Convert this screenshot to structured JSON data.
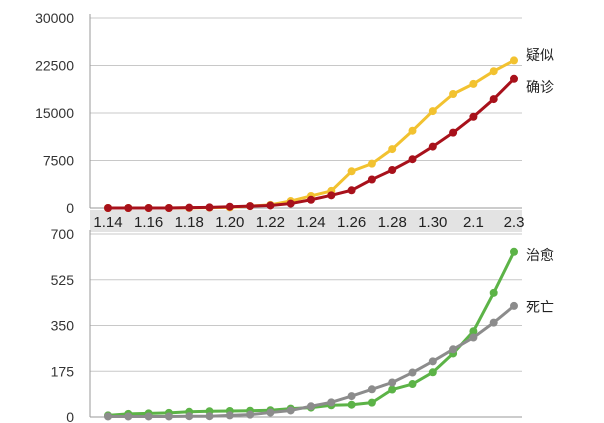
{
  "chart_data": [
    {
      "type": "line",
      "title": "",
      "xlabel": "",
      "ylabel": "",
      "categories": [
        "1.14",
        "1.15",
        "1.16",
        "1.17",
        "1.18",
        "1.19",
        "1.20",
        "1.21",
        "1.22",
        "1.23",
        "1.24",
        "1.25",
        "1.26",
        "1.27",
        "1.28",
        "1.29",
        "1.30",
        "1.31",
        "2.1",
        "2.2",
        "2.3"
      ],
      "x_tick_labels": [
        "1.14",
        "1.16",
        "1.18",
        "1.20",
        "1.22",
        "1.24",
        "1.26",
        "1.28",
        "1.30",
        "2.1",
        "2.3"
      ],
      "ylim": [
        0,
        30000
      ],
      "y_ticks": [
        0,
        7500,
        15000,
        22500,
        30000
      ],
      "grid": true,
      "legend": "right-end-labels",
      "series": [
        {
          "name": "疑似",
          "color": "#f2c230",
          "values": [
            0,
            0,
            0,
            0,
            20,
            50,
            90,
            300,
            500,
            1100,
            1900,
            2700,
            5800,
            7000,
            9300,
            12200,
            15300,
            18000,
            19600,
            21600,
            23300
          ]
        },
        {
          "name": "确诊",
          "color": "#a8111b",
          "values": [
            0,
            0,
            0,
            0,
            50,
            100,
            200,
            300,
            400,
            700,
            1300,
            2000,
            2800,
            4500,
            6000,
            7700,
            9700,
            11900,
            14400,
            17200,
            20400
          ]
        }
      ]
    },
    {
      "type": "line",
      "title": "",
      "xlabel": "",
      "ylabel": "",
      "categories": [
        "1.14",
        "1.15",
        "1.16",
        "1.17",
        "1.18",
        "1.19",
        "1.20",
        "1.21",
        "1.22",
        "1.23",
        "1.24",
        "1.25",
        "1.26",
        "1.27",
        "1.28",
        "1.29",
        "1.30",
        "1.31",
        "2.1",
        "2.2",
        "2.3"
      ],
      "ylim": [
        0,
        700
      ],
      "y_ticks": [
        0,
        175,
        350,
        525,
        700
      ],
      "grid": true,
      "legend": "right-end-labels",
      "series": [
        {
          "name": "治愈",
          "color": "#5cb347",
          "values": [
            6,
            12,
            14,
            16,
            20,
            22,
            23,
            24,
            26,
            32,
            36,
            45,
            47,
            55,
            105,
            126,
            171,
            243,
            328,
            475,
            632
          ]
        },
        {
          "name": "死亡",
          "color": "#8c8c8c",
          "values": [
            2,
            2,
            2,
            2,
            3,
            3,
            6,
            9,
            17,
            25,
            41,
            56,
            80,
            106,
            132,
            170,
            213,
            259,
            304,
            361,
            425
          ]
        }
      ]
    }
  ]
}
